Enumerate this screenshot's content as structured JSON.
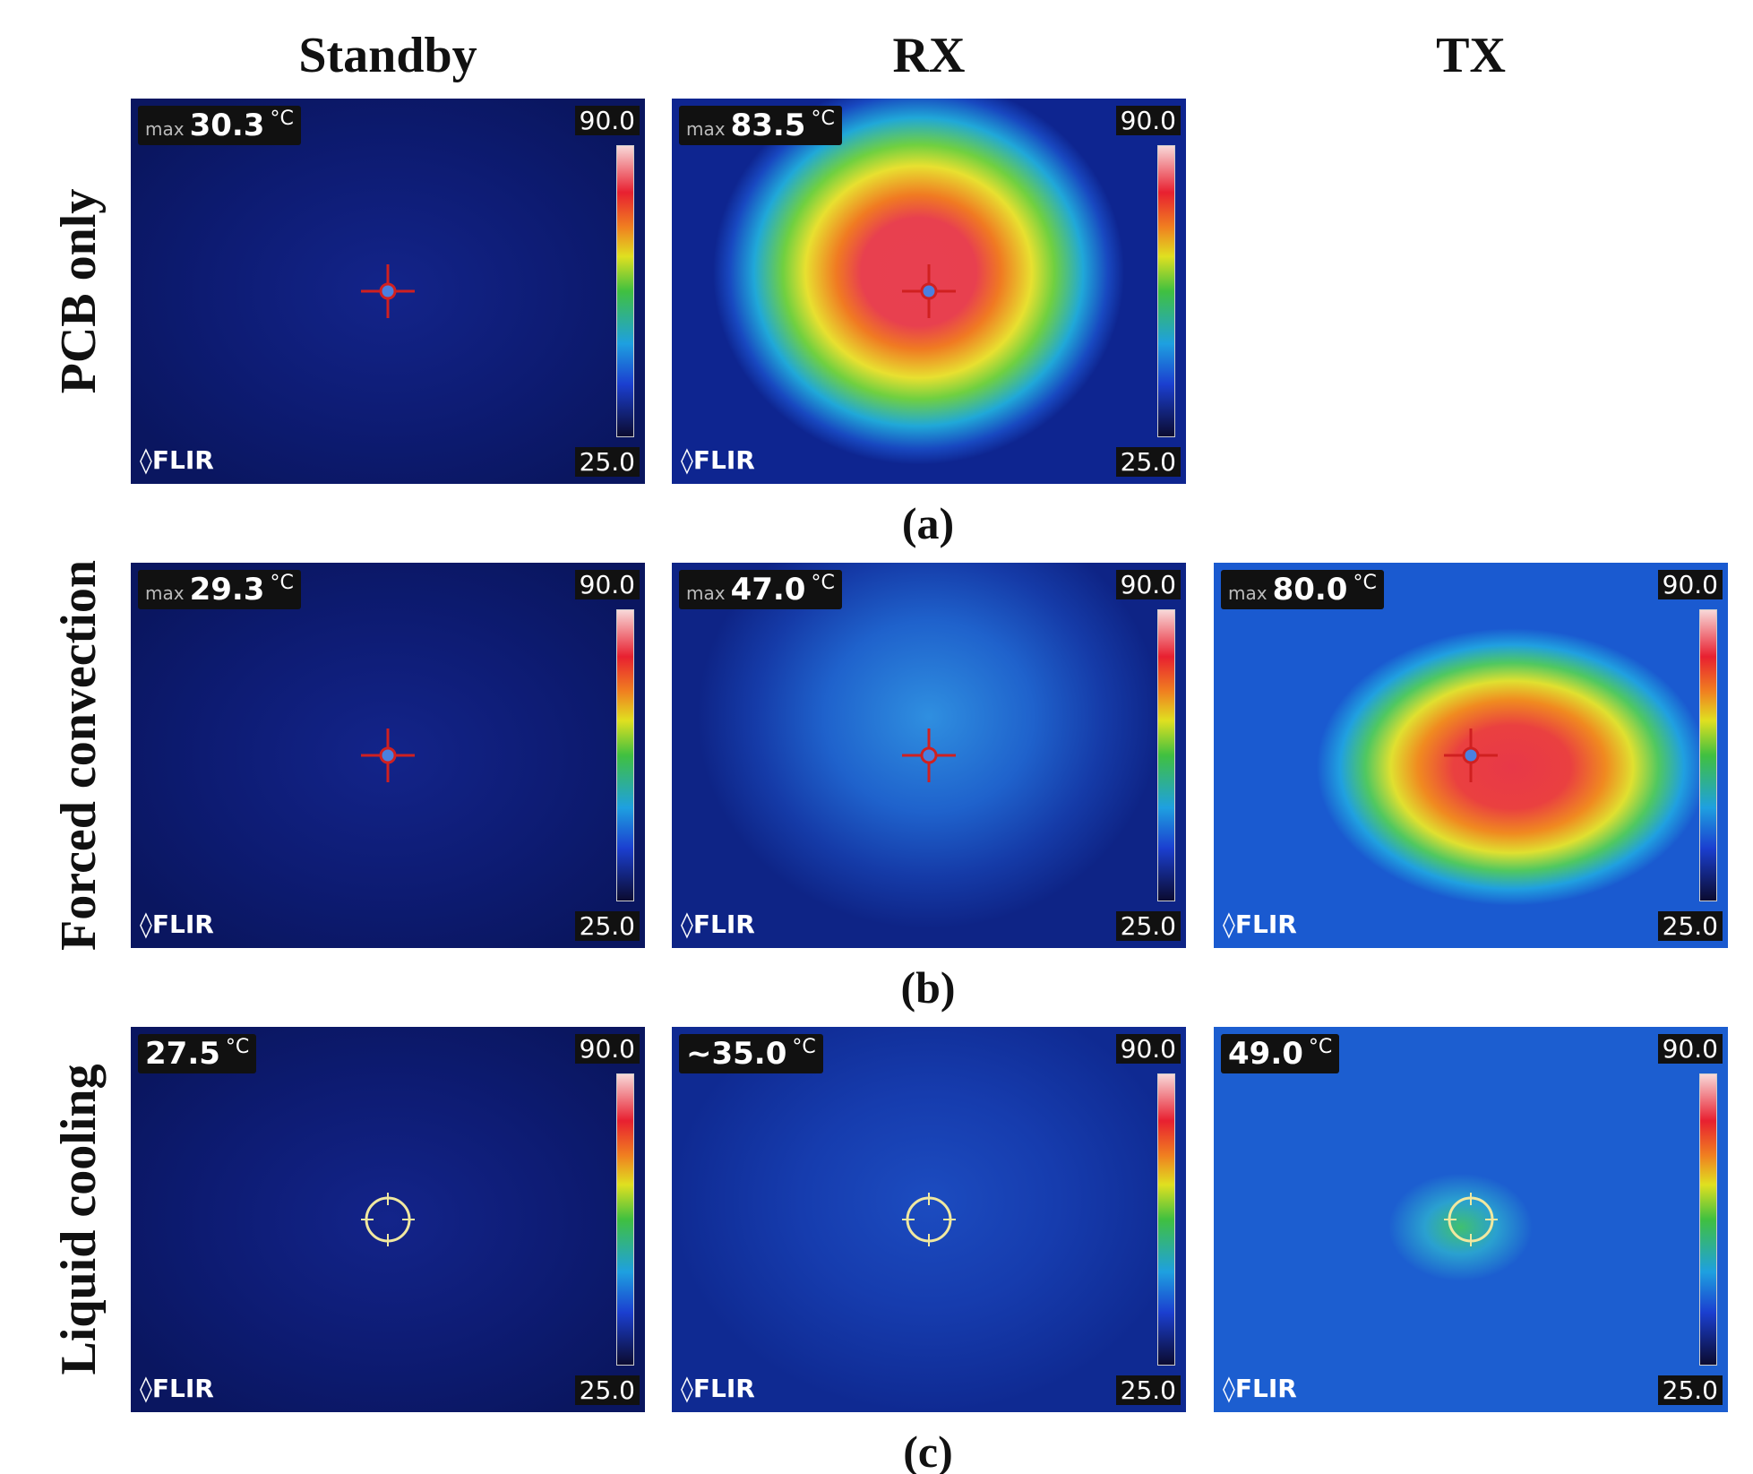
{
  "columns": [
    "Standby",
    "RX",
    "TX"
  ],
  "rows": [
    {
      "label": "PCB only",
      "caption": "(a)",
      "panels": [
        {
          "prefix": "max",
          "temperature": "30.3",
          "unit": "°C",
          "scale_max": "90.0",
          "scale_min": "25.0",
          "brand": "FLIR"
        },
        {
          "prefix": "max",
          "temperature": "83.5",
          "unit": "°C",
          "scale_max": "90.0",
          "scale_min": "25.0",
          "brand": "FLIR"
        }
      ]
    },
    {
      "label": "Forced convection",
      "caption": "(b)",
      "panels": [
        {
          "prefix": "max",
          "temperature": "29.3",
          "unit": "°C",
          "scale_max": "90.0",
          "scale_min": "25.0",
          "brand": "FLIR"
        },
        {
          "prefix": "max",
          "temperature": "47.0",
          "unit": "°C",
          "scale_max": "90.0",
          "scale_min": "25.0",
          "brand": "FLIR"
        },
        {
          "prefix": "max",
          "temperature": "80.0",
          "unit": "°C",
          "scale_max": "90.0",
          "scale_min": "25.0",
          "brand": "FLIR"
        }
      ]
    },
    {
      "label": "Liquid cooling",
      "caption": "(c)",
      "panels": [
        {
          "temperature": "27.5",
          "unit": "°C",
          "scale_max": "90.0",
          "scale_min": "25.0",
          "brand": "FLIR"
        },
        {
          "temperature": "~35.0",
          "unit": "°C",
          "scale_max": "90.0",
          "scale_min": "25.0",
          "brand": "FLIR"
        },
        {
          "temperature": "49.0",
          "unit": "°C",
          "scale_max": "90.0",
          "scale_min": "25.0",
          "brand": "FLIR"
        }
      ]
    }
  ]
}
